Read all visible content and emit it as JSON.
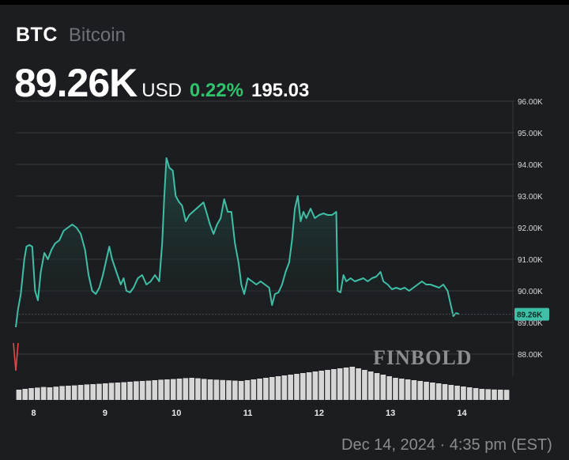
{
  "header": {
    "ticker": "BTC",
    "name": "Bitcoin",
    "price": "89.26K",
    "currency": "USD",
    "change_pct": "0.22%",
    "change_abs": "195.03"
  },
  "colors": {
    "line": "#3fbfa6",
    "area": "#1f4a43",
    "positive": "#2fc46b",
    "volume": "#e6e6e6",
    "start_marker": "#e04848",
    "last_tag": "#3fbfa6"
  },
  "watermark": "FINBOLD",
  "footer": "Dec 14, 2024 · 4:35 pm (EST)",
  "chart_data": {
    "type": "area",
    "title": "",
    "xlabel": "",
    "ylabel": "",
    "x_ticks": [
      "8",
      "9",
      "10",
      "11",
      "12",
      "13",
      "14"
    ],
    "y_ticks": [
      "96.00K",
      "95.00K",
      "94.00K",
      "93.00K",
      "92.00K",
      "91.00K",
      "90.00K",
      "89.00K",
      "88.00K"
    ],
    "ylim": [
      87.3,
      96.0
    ],
    "xlim": [
      7.75,
      14.67
    ],
    "last_value_label": "89.26K",
    "grid": true,
    "series": [
      {
        "values": [
          [
            7.75,
            88.85
          ],
          [
            7.78,
            89.4
          ],
          [
            7.82,
            89.9
          ],
          [
            7.87,
            91.0
          ],
          [
            7.9,
            91.4
          ],
          [
            7.94,
            91.45
          ],
          [
            7.98,
            91.4
          ],
          [
            8.02,
            90.0
          ],
          [
            8.06,
            89.7
          ],
          [
            8.1,
            90.6
          ],
          [
            8.15,
            91.2
          ],
          [
            8.2,
            91.0
          ],
          [
            8.25,
            91.3
          ],
          [
            8.3,
            91.5
          ],
          [
            8.36,
            91.6
          ],
          [
            8.42,
            91.9
          ],
          [
            8.48,
            92.0
          ],
          [
            8.54,
            92.1
          ],
          [
            8.6,
            92.0
          ],
          [
            8.66,
            91.8
          ],
          [
            8.72,
            91.3
          ],
          [
            8.77,
            90.5
          ],
          [
            8.82,
            90.0
          ],
          [
            8.87,
            89.9
          ],
          [
            8.92,
            90.1
          ],
          [
            8.97,
            90.5
          ],
          [
            9.02,
            91.0
          ],
          [
            9.06,
            91.4
          ],
          [
            9.1,
            91.0
          ],
          [
            9.16,
            90.6
          ],
          [
            9.22,
            90.2
          ],
          [
            9.26,
            90.4
          ],
          [
            9.3,
            90.0
          ],
          [
            9.35,
            89.95
          ],
          [
            9.4,
            90.1
          ],
          [
            9.46,
            90.4
          ],
          [
            9.52,
            90.5
          ],
          [
            9.58,
            90.2
          ],
          [
            9.64,
            90.3
          ],
          [
            9.7,
            90.5
          ],
          [
            9.76,
            90.3
          ],
          [
            9.8,
            91.5
          ],
          [
            9.83,
            93.0
          ],
          [
            9.86,
            94.2
          ],
          [
            9.9,
            93.9
          ],
          [
            9.95,
            93.8
          ],
          [
            9.99,
            93.0
          ],
          [
            10.04,
            92.8
          ],
          [
            10.08,
            92.7
          ],
          [
            10.13,
            92.2
          ],
          [
            10.18,
            92.4
          ],
          [
            10.23,
            92.5
          ],
          [
            10.28,
            92.6
          ],
          [
            10.33,
            92.7
          ],
          [
            10.38,
            92.8
          ],
          [
            10.42,
            92.5
          ],
          [
            10.47,
            92.1
          ],
          [
            10.52,
            91.8
          ],
          [
            10.57,
            92.1
          ],
          [
            10.62,
            92.3
          ],
          [
            10.67,
            92.9
          ],
          [
            10.72,
            92.5
          ],
          [
            10.77,
            92.5
          ],
          [
            10.82,
            91.5
          ],
          [
            10.87,
            90.9
          ],
          [
            10.91,
            90.2
          ],
          [
            10.95,
            89.9
          ],
          [
            11.0,
            90.4
          ],
          [
            11.06,
            90.3
          ],
          [
            11.12,
            90.2
          ],
          [
            11.18,
            90.3
          ],
          [
            11.24,
            90.2
          ],
          [
            11.3,
            90.1
          ],
          [
            11.34,
            89.55
          ],
          [
            11.38,
            89.9
          ],
          [
            11.43,
            89.95
          ],
          [
            11.48,
            90.2
          ],
          [
            11.53,
            90.6
          ],
          [
            11.58,
            90.9
          ],
          [
            11.62,
            91.6
          ],
          [
            11.66,
            92.6
          ],
          [
            11.7,
            93.0
          ],
          [
            11.74,
            92.2
          ],
          [
            11.78,
            92.5
          ],
          [
            11.82,
            92.3
          ],
          [
            11.88,
            92.6
          ],
          [
            11.94,
            92.3
          ],
          [
            12.0,
            92.4
          ],
          [
            12.06,
            92.45
          ],
          [
            12.12,
            92.4
          ],
          [
            12.18,
            92.4
          ],
          [
            12.24,
            92.5
          ],
          [
            12.26,
            90.0
          ],
          [
            12.3,
            89.95
          ],
          [
            12.34,
            90.5
          ],
          [
            12.38,
            90.3
          ],
          [
            12.44,
            90.4
          ],
          [
            12.5,
            90.3
          ],
          [
            12.56,
            90.35
          ],
          [
            12.62,
            90.4
          ],
          [
            12.68,
            90.3
          ],
          [
            12.74,
            90.4
          ],
          [
            12.8,
            90.45
          ],
          [
            12.86,
            90.6
          ],
          [
            12.9,
            90.3
          ],
          [
            12.96,
            90.2
          ],
          [
            13.02,
            90.05
          ],
          [
            13.08,
            90.1
          ],
          [
            13.14,
            90.05
          ],
          [
            13.2,
            90.1
          ],
          [
            13.26,
            90.0
          ],
          [
            13.32,
            90.1
          ],
          [
            13.38,
            90.2
          ],
          [
            13.44,
            90.3
          ],
          [
            13.5,
            90.2
          ],
          [
            13.56,
            90.2
          ],
          [
            13.62,
            90.15
          ],
          [
            13.68,
            90.1
          ],
          [
            13.74,
            90.2
          ],
          [
            13.8,
            90.0
          ],
          [
            13.88,
            89.2
          ],
          [
            13.92,
            89.3
          ],
          [
            13.96,
            89.26
          ]
        ]
      }
    ],
    "volume": [
      0.25,
      0.3,
      0.35,
      0.38,
      0.42,
      0.4,
      0.44,
      0.48,
      0.5,
      0.52,
      0.55,
      0.58,
      0.6,
      0.62,
      0.65,
      0.68,
      0.7,
      0.72,
      0.75,
      0.78,
      0.8,
      0.82,
      0.85,
      0.88,
      0.9,
      0.92,
      0.95,
      0.98,
      1.0,
      0.97,
      0.93,
      0.9,
      0.88,
      0.86,
      0.84,
      0.82,
      0.8,
      0.85,
      0.9,
      0.95,
      1.0,
      1.05,
      1.1,
      1.15,
      1.2,
      1.25,
      1.3,
      1.35,
      1.4,
      1.45,
      1.5,
      1.55,
      1.6,
      1.65,
      1.7,
      1.6,
      1.5,
      1.4,
      1.3,
      1.2,
      1.1,
      1.0,
      0.95,
      0.9,
      0.85,
      0.8,
      0.75,
      0.7,
      0.65,
      0.6,
      0.55,
      0.5,
      0.45,
      0.4,
      0.35,
      0.3,
      0.28,
      0.26,
      0.25,
      0.24
    ]
  }
}
